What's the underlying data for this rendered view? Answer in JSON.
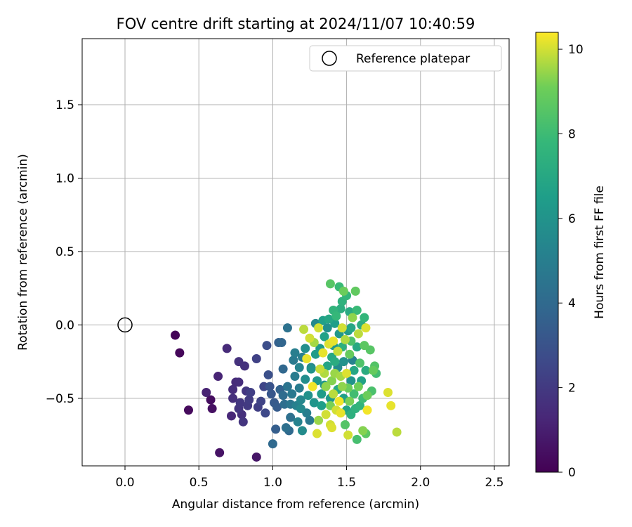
{
  "chart_data": {
    "type": "scatter",
    "title": "FOV centre drift starting at 2024/11/07 10:40:59",
    "xlabel": "Angular distance from reference (arcmin)",
    "ylabel": "Rotation from reference (arcmin)",
    "xlim": [
      -0.29,
      2.6
    ],
    "ylim": [
      -0.96,
      1.95
    ],
    "xticks": [
      0.0,
      0.5,
      1.0,
      1.5,
      2.0,
      2.5
    ],
    "xtick_labels": [
      "0.0",
      "0.5",
      "1.0",
      "1.5",
      "2.0",
      "2.5"
    ],
    "yticks": [
      -0.5,
      0.0,
      0.5,
      1.0,
      1.5
    ],
    "ytick_labels": [
      "−0.5",
      "0.0",
      "0.5",
      "1.0",
      "1.5"
    ],
    "grid": true,
    "legend": {
      "location": "top-right",
      "entries": [
        "Reference platepar"
      ]
    },
    "reference_point": {
      "x": 0.0,
      "y": 0.0
    },
    "colorbar": {
      "label": "Hours from first FF file",
      "colormap": "viridis",
      "range": [
        0,
        10.4
      ],
      "ticks": [
        0,
        2,
        4,
        6,
        8,
        10
      ],
      "tick_labels": [
        "0",
        "2",
        "4",
        "6",
        "8",
        "10"
      ]
    },
    "points": [
      {
        "x": 0.34,
        "y": -0.07,
        "h": 0.1
      },
      {
        "x": 0.37,
        "y": -0.19,
        "h": 0.2
      },
      {
        "x": 0.43,
        "y": -0.58,
        "h": 0.3
      },
      {
        "x": 0.55,
        "y": -0.46,
        "h": 1.1
      },
      {
        "x": 0.58,
        "y": -0.51,
        "h": 0.4
      },
      {
        "x": 0.59,
        "y": -0.57,
        "h": 0.5
      },
      {
        "x": 0.64,
        "y": -0.87,
        "h": 0.6
      },
      {
        "x": 0.63,
        "y": -0.35,
        "h": 1.2
      },
      {
        "x": 0.69,
        "y": -0.16,
        "h": 1.4
      },
      {
        "x": 0.72,
        "y": -0.62,
        "h": 1.3
      },
      {
        "x": 0.73,
        "y": -0.44,
        "h": 1.5
      },
      {
        "x": 0.73,
        "y": -0.5,
        "h": 1.6
      },
      {
        "x": 0.75,
        "y": -0.39,
        "h": 1.4
      },
      {
        "x": 0.77,
        "y": -0.25,
        "h": 1.7
      },
      {
        "x": 0.77,
        "y": -0.57,
        "h": 1.8
      },
      {
        "x": 0.77,
        "y": -0.39,
        "h": 1.5
      },
      {
        "x": 0.78,
        "y": -0.53,
        "h": 1.9
      },
      {
        "x": 0.79,
        "y": -0.61,
        "h": 1.6
      },
      {
        "x": 0.8,
        "y": -0.66,
        "h": 1.8
      },
      {
        "x": 0.81,
        "y": -0.28,
        "h": 1.7
      },
      {
        "x": 0.82,
        "y": -0.45,
        "h": 1.9
      },
      {
        "x": 0.83,
        "y": -0.55,
        "h": 2.0
      },
      {
        "x": 0.84,
        "y": -0.51,
        "h": 2.1
      },
      {
        "x": 0.85,
        "y": -0.46,
        "h": 2.2
      },
      {
        "x": 0.89,
        "y": -0.9,
        "h": 0.7
      },
      {
        "x": 0.89,
        "y": -0.23,
        "h": 2.3
      },
      {
        "x": 0.9,
        "y": -0.56,
        "h": 2.2
      },
      {
        "x": 0.92,
        "y": -0.52,
        "h": 2.4
      },
      {
        "x": 0.94,
        "y": -0.42,
        "h": 2.5
      },
      {
        "x": 0.95,
        "y": -0.6,
        "h": 2.6
      },
      {
        "x": 0.96,
        "y": -0.14,
        "h": 2.8
      },
      {
        "x": 0.97,
        "y": -0.34,
        "h": 2.9
      },
      {
        "x": 0.98,
        "y": -0.42,
        "h": 3.0
      },
      {
        "x": 0.99,
        "y": -0.47,
        "h": 3.2
      },
      {
        "x": 1.0,
        "y": -0.81,
        "h": 4.0
      },
      {
        "x": 1.01,
        "y": -0.53,
        "h": 3.3
      },
      {
        "x": 1.02,
        "y": -0.71,
        "h": 3.5
      },
      {
        "x": 1.03,
        "y": -0.56,
        "h": 3.4
      },
      {
        "x": 1.04,
        "y": -0.12,
        "h": 3.6
      },
      {
        "x": 1.05,
        "y": -0.44,
        "h": 3.7
      },
      {
        "x": 1.06,
        "y": -0.12,
        "h": 3.8
      },
      {
        "x": 1.07,
        "y": -0.3,
        "h": 3.9
      },
      {
        "x": 1.07,
        "y": -0.48,
        "h": 4.1
      },
      {
        "x": 1.08,
        "y": -0.54,
        "h": 4.2
      },
      {
        "x": 1.09,
        "y": -0.7,
        "h": 4.3
      },
      {
        "x": 1.1,
        "y": -0.02,
        "h": 4.4
      },
      {
        "x": 1.1,
        "y": -0.42,
        "h": 4.5
      },
      {
        "x": 1.11,
        "y": -0.72,
        "h": 4.0
      },
      {
        "x": 1.12,
        "y": -0.54,
        "h": 4.6
      },
      {
        "x": 1.13,
        "y": -0.47,
        "h": 4.7
      },
      {
        "x": 1.14,
        "y": -0.24,
        "h": 4.8
      },
      {
        "x": 1.15,
        "y": -0.35,
        "h": 4.9
      },
      {
        "x": 1.15,
        "y": -0.19,
        "h": 5.0
      },
      {
        "x": 1.16,
        "y": -0.55,
        "h": 5.1
      },
      {
        "x": 1.17,
        "y": -0.66,
        "h": 5.2
      },
      {
        "x": 1.18,
        "y": -0.29,
        "h": 5.3
      },
      {
        "x": 1.19,
        "y": -0.51,
        "h": 5.4
      },
      {
        "x": 1.19,
        "y": -0.57,
        "h": 5.5
      },
      {
        "x": 1.2,
        "y": -0.72,
        "h": 5.6
      },
      {
        "x": 1.2,
        "y": -0.22,
        "h": 5.0
      },
      {
        "x": 1.21,
        "y": -0.03,
        "h": 9.8
      },
      {
        "x": 1.22,
        "y": -0.37,
        "h": 5.7
      },
      {
        "x": 1.22,
        "y": -0.16,
        "h": 5.8
      },
      {
        "x": 1.23,
        "y": -0.23,
        "h": 10.2
      },
      {
        "x": 1.24,
        "y": -0.48,
        "h": 5.9
      },
      {
        "x": 1.25,
        "y": -0.09,
        "h": 10.0
      },
      {
        "x": 1.25,
        "y": -0.65,
        "h": 4.7
      },
      {
        "x": 1.26,
        "y": -0.3,
        "h": 6.0
      },
      {
        "x": 1.27,
        "y": -0.42,
        "h": 10.3
      },
      {
        "x": 1.28,
        "y": -0.53,
        "h": 6.1
      },
      {
        "x": 1.28,
        "y": -0.12,
        "h": 9.6
      },
      {
        "x": 1.29,
        "y": 0.01,
        "h": 5.5
      },
      {
        "x": 1.3,
        "y": -0.38,
        "h": 6.2
      },
      {
        "x": 1.3,
        "y": -0.74,
        "h": 10.1
      },
      {
        "x": 1.31,
        "y": -0.02,
        "h": 10.0
      },
      {
        "x": 1.31,
        "y": -0.65,
        "h": 9.5
      },
      {
        "x": 1.32,
        "y": -0.16,
        "h": 6.3
      },
      {
        "x": 1.32,
        "y": -0.3,
        "h": 9.9
      },
      {
        "x": 1.33,
        "y": -0.47,
        "h": 6.4
      },
      {
        "x": 1.33,
        "y": -0.55,
        "h": 6.5
      },
      {
        "x": 1.34,
        "y": 0.03,
        "h": 6.6
      },
      {
        "x": 1.34,
        "y": -0.19,
        "h": 10.2
      },
      {
        "x": 1.35,
        "y": -0.33,
        "h": 9.7
      },
      {
        "x": 1.35,
        "y": -0.08,
        "h": 6.7
      },
      {
        "x": 1.36,
        "y": -0.61,
        "h": 10.0
      },
      {
        "x": 1.36,
        "y": -0.42,
        "h": 9.4
      },
      {
        "x": 1.37,
        "y": -0.02,
        "h": 5.8
      },
      {
        "x": 1.37,
        "y": -0.28,
        "h": 6.8
      },
      {
        "x": 1.38,
        "y": -0.13,
        "h": 10.1
      },
      {
        "x": 1.38,
        "y": 0.04,
        "h": 6.9
      },
      {
        "x": 1.39,
        "y": 0.28,
        "h": 8.6
      },
      {
        "x": 1.39,
        "y": -0.55,
        "h": 9.2
      },
      {
        "x": 1.39,
        "y": -0.68,
        "h": 10.0
      },
      {
        "x": 1.4,
        "y": -0.22,
        "h": 7.0
      },
      {
        "x": 1.4,
        "y": -0.38,
        "h": 9.3
      },
      {
        "x": 1.4,
        "y": -0.7,
        "h": 10.1
      },
      {
        "x": 1.41,
        "y": 0.1,
        "h": 7.6
      },
      {
        "x": 1.41,
        "y": -0.11,
        "h": 10.2
      },
      {
        "x": 1.41,
        "y": -0.47,
        "h": 9.8
      },
      {
        "x": 1.42,
        "y": 0.01,
        "h": 6.5
      },
      {
        "x": 1.42,
        "y": -0.25,
        "h": 7.2
      },
      {
        "x": 1.42,
        "y": -0.33,
        "h": 9.5
      },
      {
        "x": 1.43,
        "y": -0.58,
        "h": 10.0
      },
      {
        "x": 1.43,
        "y": 0.06,
        "h": 7.8
      },
      {
        "x": 1.44,
        "y": -0.44,
        "h": 7.1
      },
      {
        "x": 1.44,
        "y": -0.18,
        "h": 9.9
      },
      {
        "x": 1.45,
        "y": 0.26,
        "h": 7.9
      },
      {
        "x": 1.45,
        "y": -0.06,
        "h": 6.2
      },
      {
        "x": 1.45,
        "y": -0.52,
        "h": 10.3
      },
      {
        "x": 1.46,
        "y": 0.11,
        "h": 7.3
      },
      {
        "x": 1.46,
        "y": -0.35,
        "h": 9.6
      },
      {
        "x": 1.46,
        "y": -0.6,
        "h": 10.2
      },
      {
        "x": 1.47,
        "y": -0.02,
        "h": 10.0
      },
      {
        "x": 1.47,
        "y": -0.15,
        "h": 7.4
      },
      {
        "x": 1.47,
        "y": -0.42,
        "h": 9.4
      },
      {
        "x": 1.48,
        "y": 0.23,
        "h": 9.0
      },
      {
        "x": 1.48,
        "y": -0.25,
        "h": 5.9
      },
      {
        "x": 1.48,
        "y": -0.5,
        "h": 6.6
      },
      {
        "x": 1.49,
        "y": -0.1,
        "h": 9.7
      },
      {
        "x": 1.49,
        "y": -0.68,
        "h": 8.5
      },
      {
        "x": 1.5,
        "y": 0.2,
        "h": 7.7
      },
      {
        "x": 1.5,
        "y": -0.33,
        "h": 10.1
      },
      {
        "x": 1.5,
        "y": -0.58,
        "h": 6.8
      },
      {
        "x": 1.51,
        "y": -0.04,
        "h": 6.3
      },
      {
        "x": 1.51,
        "y": -0.43,
        "h": 9.0
      },
      {
        "x": 1.51,
        "y": -0.75,
        "h": 10.0
      },
      {
        "x": 1.52,
        "y": 0.09,
        "h": 7.1
      },
      {
        "x": 1.52,
        "y": -0.2,
        "h": 8.9
      },
      {
        "x": 1.52,
        "y": -0.52,
        "h": 9.2
      },
      {
        "x": 1.53,
        "y": -0.11,
        "h": 8.3
      },
      {
        "x": 1.53,
        "y": -0.38,
        "h": 6.0
      },
      {
        "x": 1.53,
        "y": -0.61,
        "h": 7.4
      },
      {
        "x": 1.54,
        "y": -0.24,
        "h": 5.2
      },
      {
        "x": 1.54,
        "y": 0.05,
        "h": 9.4
      },
      {
        "x": 1.55,
        "y": -0.47,
        "h": 8.1
      },
      {
        "x": 1.55,
        "y": -0.31,
        "h": 6.9
      },
      {
        "x": 1.56,
        "y": 0.23,
        "h": 8.8
      },
      {
        "x": 1.56,
        "y": -0.57,
        "h": 7.5
      },
      {
        "x": 1.57,
        "y": -0.78,
        "h": 8.2
      },
      {
        "x": 1.57,
        "y": -0.15,
        "h": 7.0
      },
      {
        "x": 1.57,
        "y": 0.1,
        "h": 7.9
      },
      {
        "x": 1.58,
        "y": -0.42,
        "h": 9.1
      },
      {
        "x": 1.58,
        "y": -0.06,
        "h": 9.8
      },
      {
        "x": 1.59,
        "y": -0.26,
        "h": 8.4
      },
      {
        "x": 1.59,
        "y": -0.55,
        "h": 7.6
      },
      {
        "x": 1.6,
        "y": 0.0,
        "h": 7.3
      },
      {
        "x": 1.6,
        "y": -0.38,
        "h": 6.7
      },
      {
        "x": 1.61,
        "y": -0.5,
        "h": 8.0
      },
      {
        "x": 1.61,
        "y": -0.72,
        "h": 9.3
      },
      {
        "x": 1.62,
        "y": 0.05,
        "h": 7.7
      },
      {
        "x": 1.62,
        "y": -0.14,
        "h": 8.7
      },
      {
        "x": 1.63,
        "y": -0.31,
        "h": 7.2
      },
      {
        "x": 1.63,
        "y": -0.02,
        "h": 10.1
      },
      {
        "x": 1.64,
        "y": -0.58,
        "h": 10.3
      },
      {
        "x": 1.64,
        "y": -0.48,
        "h": 9.0
      },
      {
        "x": 1.66,
        "y": -0.17,
        "h": 8.6
      },
      {
        "x": 1.67,
        "y": -0.45,
        "h": 8.3
      },
      {
        "x": 1.68,
        "y": -0.31,
        "h": 8.9
      },
      {
        "x": 1.69,
        "y": -0.28,
        "h": 8.5
      },
      {
        "x": 1.7,
        "y": -0.33,
        "h": 8.1
      },
      {
        "x": 1.78,
        "y": -0.46,
        "h": 10.1
      },
      {
        "x": 1.8,
        "y": -0.55,
        "h": 10.2
      },
      {
        "x": 1.84,
        "y": -0.73,
        "h": 9.8
      },
      {
        "x": 1.63,
        "y": -0.74,
        "h": 8.7
      },
      {
        "x": 1.26,
        "y": -0.29,
        "h": 5.4
      },
      {
        "x": 1.18,
        "y": -0.43,
        "h": 4.9
      },
      {
        "x": 1.12,
        "y": -0.63,
        "h": 4.3
      },
      {
        "x": 1.35,
        "y": -0.41,
        "h": 6.1
      },
      {
        "x": 1.44,
        "y": -0.29,
        "h": 5.6
      },
      {
        "x": 1.29,
        "y": -0.2,
        "h": 6.4
      },
      {
        "x": 1.23,
        "y": -0.6,
        "h": 5.0
      },
      {
        "x": 1.39,
        "y": -0.5,
        "h": 6.3
      },
      {
        "x": 1.47,
        "y": 0.16,
        "h": 7.5
      },
      {
        "x": 1.53,
        "y": -0.02,
        "h": 6.9
      },
      {
        "x": 1.41,
        "y": -0.14,
        "h": 6.2
      }
    ]
  }
}
